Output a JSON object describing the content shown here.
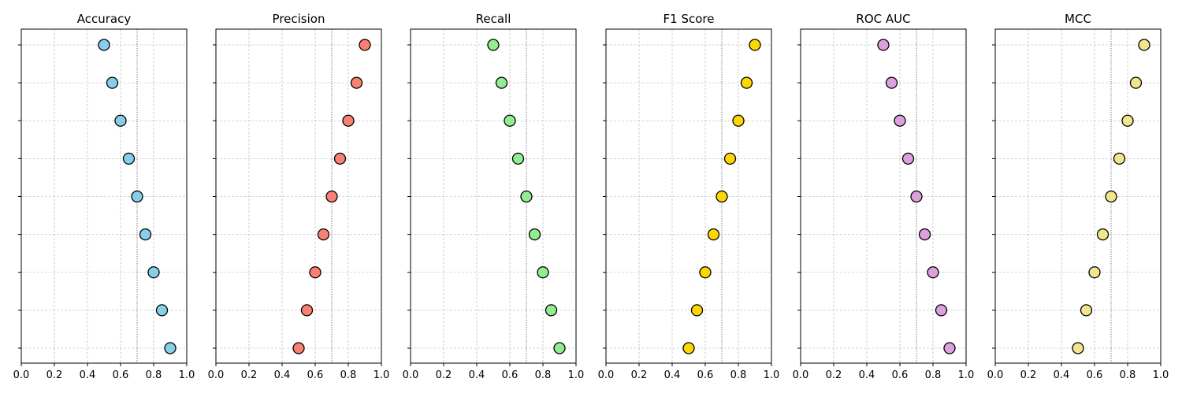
{
  "chart_data": {
    "type": "scatter",
    "layout": "dot-plot-small-multiples",
    "grid": true,
    "reference_line_x": 0.7,
    "xlim": [
      0,
      1
    ],
    "x_ticks": [
      "0.0",
      "0.2",
      "0.4",
      "0.6",
      "0.8",
      "1.0"
    ],
    "x_tick_values": [
      0,
      0.2,
      0.4,
      0.6,
      0.8,
      1.0
    ],
    "y_category_count": 9,
    "y_tick_labels_visible": false,
    "panels": [
      {
        "title": "Accuracy",
        "color": "#87ceeb",
        "values": [
          0.5,
          0.55,
          0.6,
          0.65,
          0.7,
          0.75,
          0.8,
          0.85,
          0.9
        ]
      },
      {
        "title": "Precision",
        "color": "#fa8072",
        "values": [
          0.9,
          0.85,
          0.8,
          0.75,
          0.7,
          0.65,
          0.6,
          0.55,
          0.5
        ]
      },
      {
        "title": "Recall",
        "color": "#90ee90",
        "values": [
          0.5,
          0.55,
          0.6,
          0.65,
          0.7,
          0.75,
          0.8,
          0.85,
          0.9
        ]
      },
      {
        "title": "F1 Score",
        "color": "#ffd700",
        "values": [
          0.9,
          0.85,
          0.8,
          0.75,
          0.7,
          0.65,
          0.6,
          0.55,
          0.5
        ]
      },
      {
        "title": "ROC AUC",
        "color": "#dda0dd",
        "values": [
          0.5,
          0.55,
          0.6,
          0.65,
          0.7,
          0.75,
          0.8,
          0.85,
          0.9
        ]
      },
      {
        "title": "MCC",
        "color": "#f0e68c",
        "values": [
          0.9,
          0.85,
          0.8,
          0.75,
          0.7,
          0.65,
          0.6,
          0.55,
          0.5
        ]
      }
    ]
  }
}
